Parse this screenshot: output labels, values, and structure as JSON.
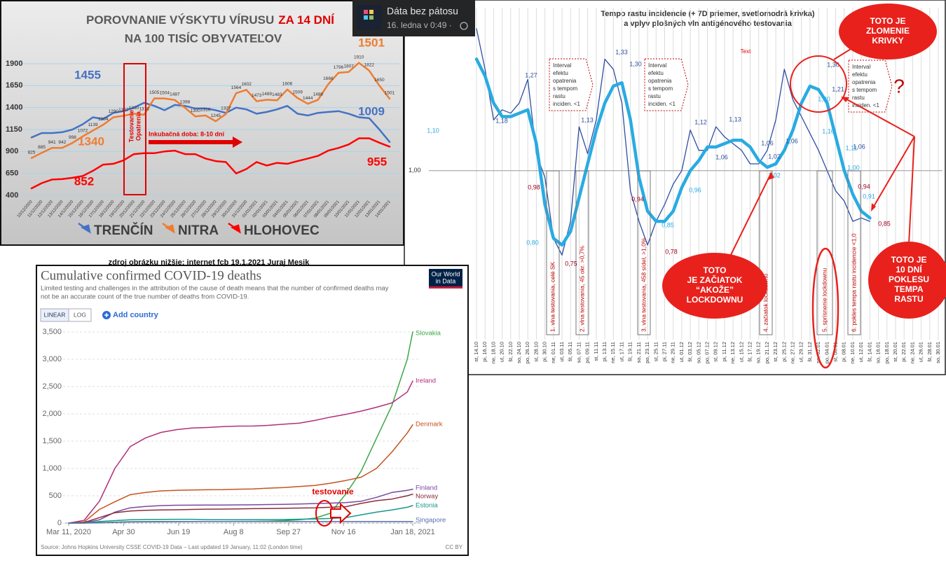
{
  "post": {
    "page": "Dáta bez pátosu",
    "time": "16. ledna v 0:49 ·"
  },
  "caption": "zdroj obrázku nižšie: internet fcb 19.1.2021 Juraj Mesik",
  "chart_data": [
    {
      "type": "line",
      "title": "POROVNANIE VÝSKYTU VÍRUSU",
      "title_highlight": "ZA 14 DNÍ",
      "subtitle": "NA 100 TISÍC OBYVATEĽOV",
      "categories": [
        "10/12/2020",
        "11/12/2020",
        "12/12/2020",
        "13/12/2020",
        "14/12/2020",
        "15/12/2020",
        "16/12/2020",
        "17/12/2020",
        "18/12/2020",
        "19/12/2020",
        "20/12/2020",
        "21/12/2020",
        "22/12/2020",
        "23/12/2020",
        "24/12/2020",
        "25/12/2020",
        "26/12/2020",
        "27/12/2020",
        "28/12/2020",
        "29/12/2020",
        "30/12/2020",
        "31/12/2020",
        "01/01/2021",
        "02/01/2021",
        "03/01/2021",
        "04/01/2021",
        "05/01/2021",
        "06/01/2021",
        "07/01/2021",
        "08/01/2021",
        "09/01/2021",
        "10/01/2021",
        "11/01/2021",
        "12/01/2021",
        "13/01/2021",
        "14/01/2021"
      ],
      "series": [
        {
          "name": "TRENČÍN",
          "color": "#4472c4",
          "values": [
            1060,
            1110,
            1110,
            1120,
            1150,
            1210,
            1290,
            1270,
            1340,
            1360,
            1400,
            1455,
            1420,
            1370,
            1430,
            1420,
            1390,
            1390,
            1370,
            1340,
            1400,
            1380,
            1330,
            1350,
            1380,
            1420,
            1330,
            1310,
            1340,
            1350,
            1360,
            1330,
            1290,
            1280,
            1150,
            1009
          ]
        },
        {
          "name": "NITRA",
          "color": "#ed7d31",
          "data_labels": true,
          "values": [
            825,
            885,
            941,
            942,
            998,
            1072,
            1139,
            1204,
            1290,
            1307,
            1330,
            1318,
            1505,
            1504,
            1487,
            1398,
            1300,
            1310,
            1245,
            1327,
            1564,
            1602,
            1473,
            1489,
            1483,
            1606,
            1509,
            1444,
            1488,
            1666,
            1796,
            1807,
            1910,
            1822,
            1650,
            1501
          ]
        },
        {
          "name": "HLOHOVEC",
          "color": "#ff0000",
          "values": [
            480,
            540,
            580,
            585,
            600,
            620,
            680,
            750,
            760,
            800,
            870,
            880,
            880,
            900,
            910,
            870,
            870,
            820,
            790,
            780,
            650,
            700,
            780,
            740,
            770,
            760,
            790,
            820,
            850,
            910,
            940,
            980,
            1050,
            1050,
            1000,
            955
          ]
        }
      ],
      "ylim": [
        400,
        1900
      ],
      "yticks": [
        400,
        650,
        900,
        1150,
        1400,
        1650,
        1900
      ],
      "grid": true,
      "legend": "bottom",
      "annotations": [
        "1455",
        "1340",
        "852",
        "1501",
        "1009",
        "955"
      ],
      "box_label": [
        "Testovanie",
        "Opatrenia"
      ],
      "arrow_label": "Inkubačná doba: 8-10 dní"
    },
    {
      "type": "line",
      "title": "Tempo rastu incidencie (+ 7D priemer, svetlomodrá krivka)",
      "subtitle": "a vplyv plošných vln antigénového testovania",
      "categories": [
        "st, 14.10",
        "pi, 16.10",
        "ne, 18.10",
        "ut, 20.10",
        "št, 22.10",
        "so, 24.10",
        "po, 26.10",
        "st, 28.10",
        "pi, 30.10",
        "ne, 01.11",
        "ut, 03.11",
        "št, 05.11",
        "so, 07.11",
        "po, 09.11",
        "st, 11.11",
        "pi, 13.11",
        "ne, 15.11",
        "ut, 17.11",
        "št, 19.11",
        "so, 21.11",
        "po, 23.11",
        "st, 25.11",
        "pi, 27.11",
        "ne, 29.11",
        "ut, 01.12",
        "št, 03.12",
        "so, 05.12",
        "po, 07.12",
        "st, 09.12",
        "pi, 11.12",
        "ne, 13.12",
        "ut, 15.12",
        "št, 17.12",
        "so, 19.12",
        "po, 21.12",
        "st, 23.12",
        "pi, 25.12",
        "ne, 27.12",
        "ut, 29.12",
        "št, 31.12",
        "so, 02.01",
        "po, 04.01",
        "st, 06.01",
        "pi, 08.01",
        "ne, 10.01",
        "ut, 12.01",
        "št, 14.01",
        "so, 16.01",
        "po, 18.01",
        "st, 20.01",
        "pi, 22.01",
        "ne, 24.01",
        "ut, 26.01",
        "št, 28.01",
        "so, 30.01"
      ],
      "series": [
        {
          "color": "#2f4ea0",
          "values": [
            1.42,
            1.3,
            1.15,
            1.18,
            1.17,
            1.2,
            1.27,
            1.05,
            0.98,
            0.8,
            0.75,
            0.85,
            1.13,
            1.05,
            1.15,
            1.33,
            1.3,
            1.2,
            0.94,
            0.85,
            0.78,
            0.85,
            0.9,
            0.96,
            1.0,
            1.12,
            1.06,
            1.06,
            1.13,
            1.1,
            1.08,
            1.06,
            1.02,
            1.02,
            1.06,
            1.15,
            1.3,
            1.21,
            1.16,
            1.11,
            1.06,
            1.0,
            0.94,
            0.91,
            0.85,
            0.86,
            0.85,
            null,
            null,
            null,
            null,
            null,
            null,
            null,
            null
          ]
        },
        {
          "color": "#29abe2",
          "values": [
            1.33,
            1.28,
            1.2,
            1.16,
            1.16,
            1.17,
            1.18,
            1.08,
            0.9,
            0.8,
            0.78,
            0.82,
            0.92,
            1.02,
            1.12,
            1.2,
            1.25,
            1.26,
            1.15,
            0.98,
            0.88,
            0.85,
            0.85,
            0.88,
            0.95,
            1.0,
            1.03,
            1.07,
            1.07,
            1.08,
            1.09,
            1.09,
            1.07,
            1.03,
            1.01,
            1.02,
            1.06,
            1.12,
            1.2,
            1.25,
            1.24,
            1.2,
            1.1,
            1.0,
            0.93,
            0.88,
            0.86,
            null,
            null,
            null,
            null,
            null,
            null,
            null,
            null
          ]
        }
      ],
      "ylim": [
        0.5,
        1.42
      ],
      "yticks": [
        {
          "value": 1,
          "label": "1,00"
        }
      ],
      "grid": true,
      "xgrid": true,
      "point_labels": [
        "1,10",
        "1,27",
        "1,18",
        "1,33",
        "1,30",
        "1,13",
        "1,12",
        "1,13",
        "1,06",
        "1,06",
        "1,02",
        "1,06",
        "1,30",
        "1,21",
        "1,20",
        "1,16",
        "1,11",
        "1,06",
        "1,00",
        "0,98",
        "0,80",
        "0,75",
        "0,94",
        "0,85",
        "0,78",
        "0,96",
        "0,94",
        "0,91",
        "0,85",
        "1,02"
      ],
      "interval_boxes": [
        [
          "Interval",
          "efektu",
          "opatrenia",
          "s tempom",
          "rastu",
          "inciden. <1"
        ],
        [
          "Interval",
          "efektu",
          "opatrenia",
          "s tempom",
          "rastu",
          "inciden. <1"
        ],
        [
          "Interval",
          "efektu",
          "opatrenia",
          "s tempom",
          "rastu",
          "inciden. <1"
        ]
      ],
      "phase_labels": [
        "1. vlna testovania, celé SK",
        "2. vlna testovania, 45 okr. >0,7%",
        "3. vlna testovania, 458 sídel, >1,0%",
        "4. začiatok lockdownu",
        "5. sprísnenie lockdownu",
        "6. pokles tempa rastu incidencie <1,0"
      ],
      "callouts": [
        [
          "TOTO JE",
          "ZLOMENIE",
          "KRIVKY"
        ],
        [
          "TOTO",
          "JE ZAČIATOK",
          "“AKOŽE”",
          "LOCKDOWNU"
        ],
        [
          "TOTO JE",
          "10 DNÍ",
          "POKLESU",
          "TEMPA",
          "RASTU"
        ]
      ],
      "notes": [
        "?",
        "Text"
      ]
    },
    {
      "type": "line",
      "title": "Cumulative confirmed COVID-19 deaths",
      "subtitle": [
        "Limited testing and challenges in the attribution of the cause of death means that the number of confirmed deaths may",
        "not be an accurate count of the true number of deaths from COVID-19."
      ],
      "x": [
        "2020-03-11",
        "2020-03-25",
        "2020-04-08",
        "2020-04-22",
        "2020-05-06",
        "2020-05-20",
        "2020-06-03",
        "2020-06-17",
        "2020-07-01",
        "2020-07-15",
        "2020-07-29",
        "2020-08-12",
        "2020-08-26",
        "2020-09-09",
        "2020-09-23",
        "2020-10-07",
        "2020-10-21",
        "2020-11-04",
        "2020-11-18",
        "2020-12-02",
        "2020-12-16",
        "2020-12-30",
        "2021-01-13",
        "2021-01-18"
      ],
      "series": [
        {
          "name": "Slovakia",
          "color": "#3aa845",
          "values": [
            0,
            0,
            2,
            15,
            25,
            27,
            28,
            28,
            28,
            28,
            30,
            31,
            32,
            36,
            45,
            60,
            90,
            180,
            530,
            950,
            1550,
            2150,
            3000,
            3500
          ]
        },
        {
          "name": "Ireland",
          "color": "#b0307a",
          "values": [
            0,
            50,
            400,
            1000,
            1400,
            1560,
            1660,
            1710,
            1740,
            1750,
            1765,
            1775,
            1777,
            1790,
            1810,
            1830,
            1880,
            1940,
            1990,
            2050,
            2120,
            2200,
            2400,
            2600
          ]
        },
        {
          "name": "Denmark",
          "color": "#c4541f",
          "values": [
            0,
            20,
            250,
            390,
            520,
            560,
            590,
            600,
            605,
            610,
            612,
            620,
            625,
            640,
            650,
            670,
            690,
            730,
            780,
            840,
            1000,
            1300,
            1650,
            1800
          ]
        },
        {
          "name": "Finland",
          "color": "#7a48a0",
          "values": [
            0,
            5,
            60,
            200,
            280,
            305,
            320,
            327,
            328,
            330,
            331,
            333,
            335,
            340,
            342,
            350,
            358,
            365,
            375,
            400,
            470,
            560,
            600,
            620
          ]
        },
        {
          "name": "Norway",
          "color": "#8a2c3c",
          "values": [
            0,
            10,
            100,
            190,
            220,
            235,
            240,
            244,
            250,
            255,
            256,
            260,
            264,
            266,
            270,
            275,
            280,
            290,
            300,
            360,
            410,
            440,
            500,
            530
          ]
        },
        {
          "name": "Estonia",
          "color": "#16988a",
          "values": [
            0,
            0,
            30,
            45,
            60,
            65,
            68,
            69,
            69,
            63,
            63,
            63,
            64,
            64,
            65,
            70,
            75,
            85,
            100,
            150,
            200,
            240,
            290,
            320
          ]
        },
        {
          "name": "Singapore",
          "color": "#5470b0",
          "values": [
            0,
            1,
            8,
            14,
            20,
            23,
            24,
            26,
            27,
            28,
            28,
            28,
            28,
            28,
            29,
            29,
            29,
            29,
            29,
            29,
            29,
            29,
            29,
            29
          ]
        }
      ],
      "xlim": [
        "2020-03-11",
        "2021-01-18"
      ],
      "xticks": [
        {
          "value": "2020-03-11",
          "label": "Mar 11, 2020"
        },
        {
          "value": "2020-04-30",
          "label": "Apr 30"
        },
        {
          "value": "2020-06-19",
          "label": "Jun 19"
        },
        {
          "value": "2020-08-08",
          "label": "Aug 8"
        },
        {
          "value": "2020-09-27",
          "label": "Sep 27"
        },
        {
          "value": "2020-11-16",
          "label": "Nov 16"
        },
        {
          "value": "2021-01-18",
          "label": "Jan 18, 2021"
        }
      ],
      "ylim": [
        0,
        3500
      ],
      "yticks": [
        0,
        500,
        {
          "value": 1000,
          "label": "1,000"
        },
        {
          "value": 1500,
          "label": "1,500"
        },
        {
          "value": 2000,
          "label": "2,000"
        },
        {
          "value": 2500,
          "label": "2,500"
        },
        {
          "value": 3000,
          "label": "3,000"
        },
        {
          "value": 3500,
          "label": "3,500"
        }
      ],
      "grid": true,
      "end_labels": true,
      "buttons": [
        "LINEAR",
        "LOG"
      ],
      "add_country": "Add country",
      "logo": [
        "Our World",
        "in Data"
      ],
      "source": "Source: Johns Hopkins University CSSE COVID-19 Data – Last updated 19 January, 11:02 (London time)",
      "license": "CC BY",
      "annotation": "testovanie"
    }
  ]
}
